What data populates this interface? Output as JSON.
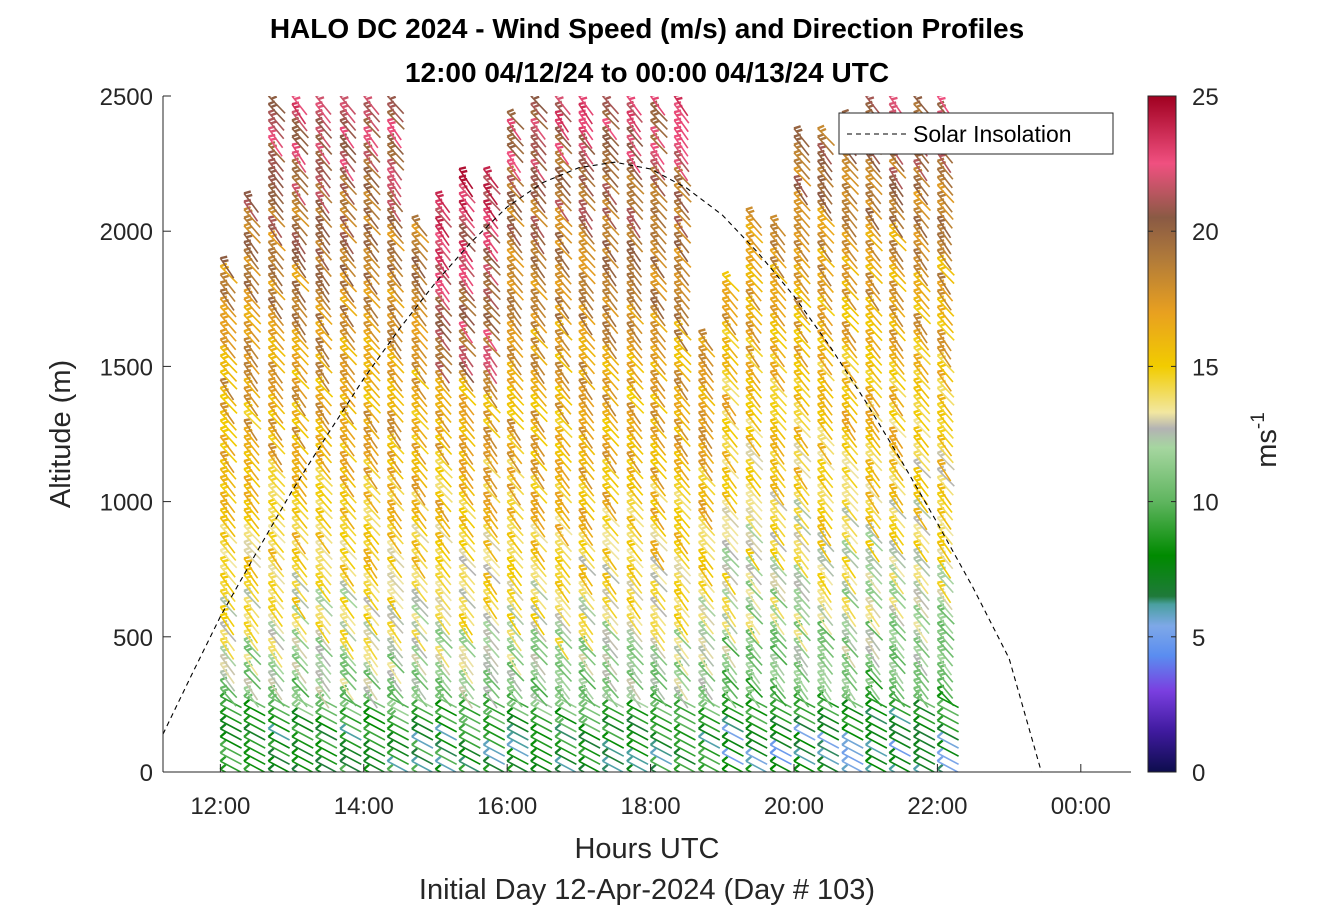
{
  "chart_data": {
    "type": "scatter",
    "title_line1": "HALO DC 2024 - Wind Speed (m/s) and Direction Profiles",
    "title_line2": "12:00 04/12/24 to 00:00 04/13/24  UTC",
    "xlabel": "Hours UTC",
    "xlabel2": "Initial Day 12-Apr-2024 (Day # 103)",
    "ylabel": "Altitude (m)",
    "xlim": [
      11.2,
      24.7
    ],
    "ylim": [
      0,
      2500
    ],
    "x_ticks": [
      12,
      14,
      16,
      18,
      20,
      22,
      24
    ],
    "x_tick_labels": [
      "12:00",
      "14:00",
      "16:00",
      "18:00",
      "20:00",
      "22:00",
      "00:00"
    ],
    "y_ticks": [
      0,
      500,
      1000,
      1500,
      2000,
      2500
    ],
    "y_tick_labels": [
      "0",
      "500",
      "1000",
      "1500",
      "2000",
      "2500"
    ],
    "colorbar": {
      "label": "ms",
      "label_exponent": "-1",
      "range": [
        0,
        25
      ],
      "ticks": [
        0,
        5,
        10,
        15,
        20,
        25
      ],
      "tick_labels": [
        "0",
        "5",
        "10",
        "15",
        "20",
        "25"
      ],
      "stops": [
        {
          "v": 0,
          "color": "#0d0d4d"
        },
        {
          "v": 1.5,
          "color": "#3f1a9e"
        },
        {
          "v": 3,
          "color": "#7a3fe0"
        },
        {
          "v": 4.3,
          "color": "#5a8df0"
        },
        {
          "v": 5.4,
          "color": "#7ea8e8"
        },
        {
          "v": 6.2,
          "color": "#4aa0a0"
        },
        {
          "v": 6.5,
          "color": "#1f7a3a"
        },
        {
          "v": 8,
          "color": "#008a00"
        },
        {
          "v": 10,
          "color": "#5fb55f"
        },
        {
          "v": 12,
          "color": "#a6d6a0"
        },
        {
          "v": 12.7,
          "color": "#b3b3b3"
        },
        {
          "v": 13.3,
          "color": "#f2e7a0"
        },
        {
          "v": 15,
          "color": "#f2cc00"
        },
        {
          "v": 17,
          "color": "#e8a020"
        },
        {
          "v": 19,
          "color": "#b07a3a"
        },
        {
          "v": 20.5,
          "color": "#8a5a44"
        },
        {
          "v": 22.5,
          "color": "#f05080"
        },
        {
          "v": 25,
          "color": "#a00020"
        }
      ]
    },
    "legend": {
      "position": "top-right",
      "entries": [
        "Solar Insolation"
      ]
    },
    "solar_insolation": {
      "style": "dashed",
      "x": [
        11.2,
        11.6,
        12.0,
        12.5,
        13.0,
        13.5,
        14.0,
        14.5,
        15.0,
        15.5,
        16.0,
        16.5,
        17.0,
        17.5,
        18.0,
        18.5,
        19.0,
        19.5,
        20.0,
        20.5,
        21.0,
        21.5,
        22.0,
        22.5,
        23.0,
        23.45,
        23.8,
        24.2,
        24.6
      ],
      "y": [
        140,
        360,
        575,
        810,
        1040,
        1250,
        1455,
        1640,
        1810,
        1960,
        2090,
        2180,
        2235,
        2255,
        2230,
        2160,
        2060,
        1920,
        1760,
        1575,
        1370,
        1150,
        920,
        680,
        420,
        0,
        0,
        0,
        0
      ]
    },
    "profiles": {
      "times": [
        12.0,
        12.33,
        12.67,
        13.0,
        13.33,
        13.67,
        14.0,
        14.33,
        14.67,
        15.0,
        15.33,
        15.67,
        16.0,
        16.33,
        16.67,
        17.0,
        17.33,
        17.67,
        18.0,
        18.33,
        18.67,
        19.0,
        19.33,
        19.67,
        20.0,
        20.33,
        20.67,
        21.0,
        21.33,
        21.67,
        22.0
      ],
      "top_altitudes": [
        1900,
        2150,
        2500,
        2500,
        2500,
        2500,
        2500,
        2500,
        2050,
        2150,
        2250,
        2250,
        2450,
        2500,
        2500,
        2500,
        2500,
        2500,
        2500,
        2500,
        1650,
        1850,
        2100,
        2050,
        2400,
        2400,
        2450,
        2500,
        2500,
        2500,
        2500
      ],
      "altitude_step_m": 30,
      "speed_structure_ms": [
        {
          "altitude": 0,
          "speed": 8
        },
        {
          "altitude": 150,
          "speed": 7.5
        },
        {
          "altitude": 300,
          "speed": 11
        },
        {
          "altitude": 600,
          "speed": 13.5
        },
        {
          "altitude": 1000,
          "speed": 15.5
        },
        {
          "altitude": 1500,
          "speed": 17
        },
        {
          "altitude": 2000,
          "speed": 19
        },
        {
          "altitude": 2500,
          "speed": 22
        }
      ],
      "direction": "from west-northwest (barbs point to lower right)"
    }
  }
}
